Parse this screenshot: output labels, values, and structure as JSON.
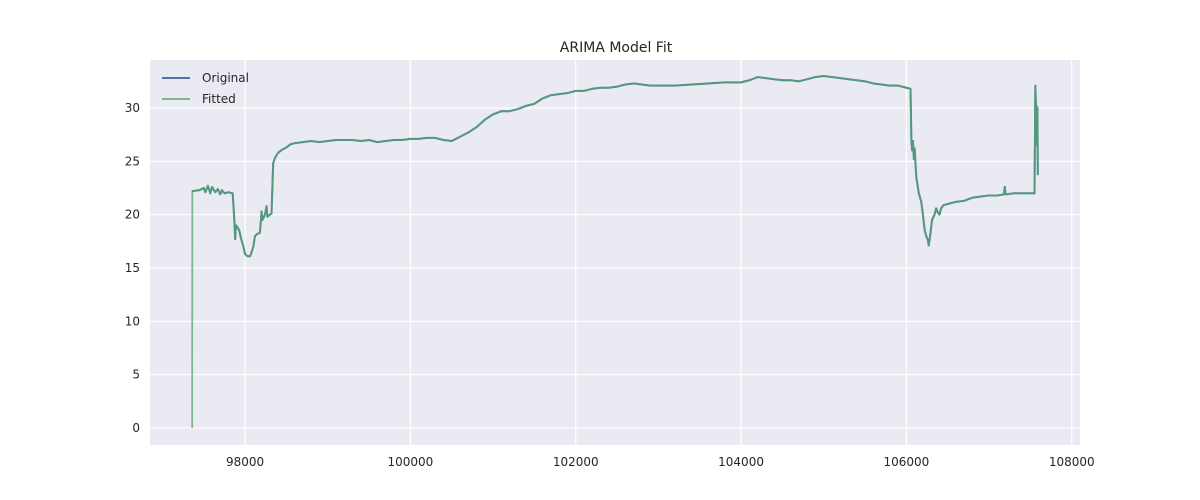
{
  "chart_data": {
    "type": "line",
    "title": "ARIMA Model Fit",
    "xlabel": "",
    "ylabel": "",
    "xlim": [
      96850,
      108100
    ],
    "ylim": [
      -1.6,
      34.5
    ],
    "xticks": [
      98000,
      100000,
      102000,
      104000,
      106000,
      108000
    ],
    "yticks": [
      0,
      5,
      10,
      15,
      20,
      25,
      30
    ],
    "grid": true,
    "legend_position": "upper-left",
    "series": [
      {
        "name": "Original",
        "color": "#4c72b0",
        "points": [
          [
            97360,
            22.2
          ],
          [
            97450,
            22.3
          ],
          [
            97500,
            22.5
          ],
          [
            97520,
            22.1
          ],
          [
            97550,
            22.7
          ],
          [
            97580,
            22.0
          ],
          [
            97600,
            22.6
          ],
          [
            97640,
            22.1
          ],
          [
            97670,
            22.4
          ],
          [
            97700,
            21.9
          ],
          [
            97720,
            22.3
          ],
          [
            97750,
            22.0
          ],
          [
            97800,
            22.1
          ],
          [
            97850,
            22.0
          ],
          [
            97870,
            19.5
          ],
          [
            97880,
            17.7
          ],
          [
            97890,
            19.0
          ],
          [
            97910,
            18.8
          ],
          [
            97930,
            18.5
          ],
          [
            97950,
            17.8
          ],
          [
            97980,
            17.0
          ],
          [
            98000,
            16.3
          ],
          [
            98030,
            16.1
          ],
          [
            98060,
            16.1
          ],
          [
            98080,
            16.5
          ],
          [
            98100,
            17.0
          ],
          [
            98120,
            18.0
          ],
          [
            98150,
            18.2
          ],
          [
            98180,
            18.3
          ],
          [
            98200,
            20.3
          ],
          [
            98210,
            19.5
          ],
          [
            98240,
            20.0
          ],
          [
            98260,
            20.8
          ],
          [
            98270,
            19.8
          ],
          [
            98300,
            20.0
          ],
          [
            98320,
            20.1
          ],
          [
            98340,
            24.8
          ],
          [
            98360,
            25.3
          ],
          [
            98400,
            25.8
          ],
          [
            98450,
            26.1
          ],
          [
            98500,
            26.3
          ],
          [
            98550,
            26.6
          ],
          [
            98600,
            26.7
          ],
          [
            98700,
            26.8
          ],
          [
            98800,
            26.9
          ],
          [
            98900,
            26.8
          ],
          [
            99000,
            26.9
          ],
          [
            99100,
            27.0
          ],
          [
            99200,
            27.0
          ],
          [
            99300,
            27.0
          ],
          [
            99400,
            26.9
          ],
          [
            99500,
            27.0
          ],
          [
            99600,
            26.8
          ],
          [
            99700,
            26.9
          ],
          [
            99800,
            27.0
          ],
          [
            99900,
            27.0
          ],
          [
            100000,
            27.1
          ],
          [
            100100,
            27.1
          ],
          [
            100200,
            27.2
          ],
          [
            100300,
            27.2
          ],
          [
            100400,
            27.0
          ],
          [
            100500,
            26.9
          ],
          [
            100600,
            27.3
          ],
          [
            100700,
            27.7
          ],
          [
            100800,
            28.2
          ],
          [
            100900,
            28.9
          ],
          [
            101000,
            29.4
          ],
          [
            101100,
            29.7
          ],
          [
            101200,
            29.7
          ],
          [
            101300,
            29.9
          ],
          [
            101400,
            30.2
          ],
          [
            101500,
            30.4
          ],
          [
            101600,
            30.9
          ],
          [
            101700,
            31.2
          ],
          [
            101800,
            31.3
          ],
          [
            101900,
            31.4
          ],
          [
            102000,
            31.6
          ],
          [
            102100,
            31.6
          ],
          [
            102200,
            31.8
          ],
          [
            102300,
            31.9
          ],
          [
            102400,
            31.9
          ],
          [
            102500,
            32.0
          ],
          [
            102600,
            32.2
          ],
          [
            102700,
            32.3
          ],
          [
            102800,
            32.2
          ],
          [
            102900,
            32.1
          ],
          [
            103000,
            32.1
          ],
          [
            103200,
            32.1
          ],
          [
            103400,
            32.2
          ],
          [
            103600,
            32.3
          ],
          [
            103800,
            32.4
          ],
          [
            104000,
            32.4
          ],
          [
            104100,
            32.6
          ],
          [
            104200,
            32.9
          ],
          [
            104300,
            32.8
          ],
          [
            104400,
            32.7
          ],
          [
            104500,
            32.6
          ],
          [
            104600,
            32.6
          ],
          [
            104700,
            32.5
          ],
          [
            104800,
            32.7
          ],
          [
            104900,
            32.9
          ],
          [
            105000,
            33.0
          ],
          [
            105100,
            32.9
          ],
          [
            105200,
            32.8
          ],
          [
            105300,
            32.7
          ],
          [
            105400,
            32.6
          ],
          [
            105500,
            32.5
          ],
          [
            105600,
            32.3
          ],
          [
            105700,
            32.2
          ],
          [
            105800,
            32.1
          ],
          [
            105900,
            32.1
          ],
          [
            106000,
            31.9
          ],
          [
            106050,
            31.8
          ],
          [
            106060,
            27.0
          ],
          [
            106070,
            26.0
          ],
          [
            106080,
            26.9
          ],
          [
            106090,
            25.2
          ],
          [
            106100,
            26.2
          ],
          [
            106110,
            24.8
          ],
          [
            106120,
            23.5
          ],
          [
            106150,
            22.0
          ],
          [
            106180,
            21.2
          ],
          [
            106200,
            20.0
          ],
          [
            106220,
            18.6
          ],
          [
            106240,
            18.0
          ],
          [
            106260,
            17.6
          ],
          [
            106270,
            17.1
          ],
          [
            106290,
            18.2
          ],
          [
            106310,
            19.5
          ],
          [
            106340,
            20.0
          ],
          [
            106360,
            20.6
          ],
          [
            106380,
            20.2
          ],
          [
            106400,
            20.0
          ],
          [
            106420,
            20.6
          ],
          [
            106450,
            20.9
          ],
          [
            106500,
            21.0
          ],
          [
            106600,
            21.2
          ],
          [
            106700,
            21.3
          ],
          [
            106800,
            21.6
          ],
          [
            106900,
            21.7
          ],
          [
            107000,
            21.8
          ],
          [
            107100,
            21.8
          ],
          [
            107180,
            21.9
          ],
          [
            107190,
            22.6
          ],
          [
            107200,
            21.9
          ],
          [
            107300,
            22.0
          ],
          [
            107400,
            22.0
          ],
          [
            107500,
            22.0
          ],
          [
            107550,
            22.0
          ],
          [
            107560,
            32.1
          ],
          [
            107565,
            30.8
          ],
          [
            107570,
            29.6
          ],
          [
            107575,
            30.2
          ],
          [
            107580,
            26.5
          ],
          [
            107585,
            30.0
          ],
          [
            107590,
            23.7
          ]
        ]
      },
      {
        "name": "Fitted",
        "color": "#55a868",
        "points": [
          [
            97360,
            0.0
          ],
          [
            97362,
            22.2
          ],
          [
            97450,
            22.3
          ],
          [
            97500,
            22.5
          ],
          [
            97520,
            22.1
          ],
          [
            97550,
            22.7
          ],
          [
            97580,
            22.0
          ],
          [
            97600,
            22.6
          ],
          [
            97640,
            22.1
          ],
          [
            97670,
            22.4
          ],
          [
            97700,
            21.9
          ],
          [
            97720,
            22.3
          ],
          [
            97750,
            22.0
          ],
          [
            97800,
            22.1
          ],
          [
            97850,
            22.0
          ],
          [
            97870,
            19.5
          ],
          [
            97880,
            17.7
          ],
          [
            97890,
            19.0
          ],
          [
            97910,
            18.8
          ],
          [
            97930,
            18.5
          ],
          [
            97950,
            17.8
          ],
          [
            97980,
            17.0
          ],
          [
            98000,
            16.3
          ],
          [
            98030,
            16.1
          ],
          [
            98060,
            16.1
          ],
          [
            98080,
            16.5
          ],
          [
            98100,
            17.0
          ],
          [
            98120,
            18.0
          ],
          [
            98150,
            18.2
          ],
          [
            98180,
            18.3
          ],
          [
            98200,
            20.3
          ],
          [
            98210,
            19.5
          ],
          [
            98240,
            20.0
          ],
          [
            98260,
            20.8
          ],
          [
            98270,
            19.8
          ],
          [
            98300,
            20.0
          ],
          [
            98320,
            20.1
          ],
          [
            98340,
            24.8
          ],
          [
            98360,
            25.3
          ],
          [
            98400,
            25.8
          ],
          [
            98450,
            26.1
          ],
          [
            98500,
            26.3
          ],
          [
            98550,
            26.6
          ],
          [
            98600,
            26.7
          ],
          [
            98700,
            26.8
          ],
          [
            98800,
            26.9
          ],
          [
            98900,
            26.8
          ],
          [
            99000,
            26.9
          ],
          [
            99100,
            27.0
          ],
          [
            99200,
            27.0
          ],
          [
            99300,
            27.0
          ],
          [
            99400,
            26.9
          ],
          [
            99500,
            27.0
          ],
          [
            99600,
            26.8
          ],
          [
            99700,
            26.9
          ],
          [
            99800,
            27.0
          ],
          [
            99900,
            27.0
          ],
          [
            100000,
            27.1
          ],
          [
            100100,
            27.1
          ],
          [
            100200,
            27.2
          ],
          [
            100300,
            27.2
          ],
          [
            100400,
            27.0
          ],
          [
            100500,
            26.9
          ],
          [
            100600,
            27.3
          ],
          [
            100700,
            27.7
          ],
          [
            100800,
            28.2
          ],
          [
            100900,
            28.9
          ],
          [
            101000,
            29.4
          ],
          [
            101100,
            29.7
          ],
          [
            101200,
            29.7
          ],
          [
            101300,
            29.9
          ],
          [
            101400,
            30.2
          ],
          [
            101500,
            30.4
          ],
          [
            101600,
            30.9
          ],
          [
            101700,
            31.2
          ],
          [
            101800,
            31.3
          ],
          [
            101900,
            31.4
          ],
          [
            102000,
            31.6
          ],
          [
            102100,
            31.6
          ],
          [
            102200,
            31.8
          ],
          [
            102300,
            31.9
          ],
          [
            102400,
            31.9
          ],
          [
            102500,
            32.0
          ],
          [
            102600,
            32.2
          ],
          [
            102700,
            32.3
          ],
          [
            102800,
            32.2
          ],
          [
            102900,
            32.1
          ],
          [
            103000,
            32.1
          ],
          [
            103200,
            32.1
          ],
          [
            103400,
            32.2
          ],
          [
            103600,
            32.3
          ],
          [
            103800,
            32.4
          ],
          [
            104000,
            32.4
          ],
          [
            104100,
            32.6
          ],
          [
            104200,
            32.9
          ],
          [
            104300,
            32.8
          ],
          [
            104400,
            32.7
          ],
          [
            104500,
            32.6
          ],
          [
            104600,
            32.6
          ],
          [
            104700,
            32.5
          ],
          [
            104800,
            32.7
          ],
          [
            104900,
            32.9
          ],
          [
            105000,
            33.0
          ],
          [
            105100,
            32.9
          ],
          [
            105200,
            32.8
          ],
          [
            105300,
            32.7
          ],
          [
            105400,
            32.6
          ],
          [
            105500,
            32.5
          ],
          [
            105600,
            32.3
          ],
          [
            105700,
            32.2
          ],
          [
            105800,
            32.1
          ],
          [
            105900,
            32.1
          ],
          [
            106000,
            31.9
          ],
          [
            106050,
            31.8
          ],
          [
            106060,
            27.0
          ],
          [
            106070,
            26.0
          ],
          [
            106080,
            26.9
          ],
          [
            106090,
            25.2
          ],
          [
            106100,
            26.2
          ],
          [
            106110,
            24.8
          ],
          [
            106120,
            23.5
          ],
          [
            106150,
            22.0
          ],
          [
            106180,
            21.2
          ],
          [
            106200,
            20.0
          ],
          [
            106220,
            18.6
          ],
          [
            106240,
            18.0
          ],
          [
            106260,
            17.6
          ],
          [
            106270,
            17.1
          ],
          [
            106290,
            18.2
          ],
          [
            106310,
            19.5
          ],
          [
            106340,
            20.0
          ],
          [
            106360,
            20.6
          ],
          [
            106380,
            20.2
          ],
          [
            106400,
            20.0
          ],
          [
            106420,
            20.6
          ],
          [
            106450,
            20.9
          ],
          [
            106500,
            21.0
          ],
          [
            106600,
            21.2
          ],
          [
            106700,
            21.3
          ],
          [
            106800,
            21.6
          ],
          [
            106900,
            21.7
          ],
          [
            107000,
            21.8
          ],
          [
            107100,
            21.8
          ],
          [
            107180,
            21.9
          ],
          [
            107190,
            22.6
          ],
          [
            107200,
            21.9
          ],
          [
            107300,
            22.0
          ],
          [
            107400,
            22.0
          ],
          [
            107500,
            22.0
          ],
          [
            107550,
            22.0
          ],
          [
            107560,
            32.1
          ],
          [
            107565,
            30.8
          ],
          [
            107570,
            29.6
          ],
          [
            107575,
            30.2
          ],
          [
            107580,
            26.5
          ],
          [
            107585,
            30.0
          ],
          [
            107590,
            23.7
          ]
        ]
      }
    ]
  }
}
